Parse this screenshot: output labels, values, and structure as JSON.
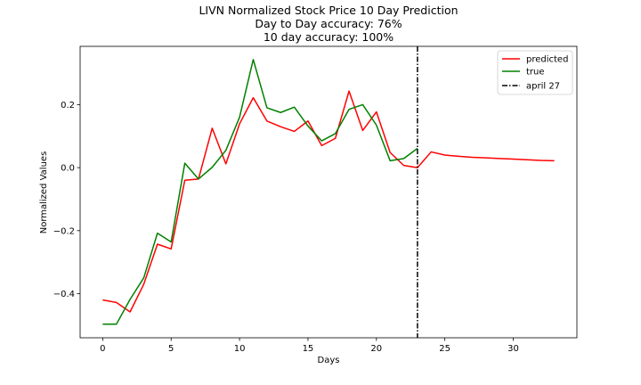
{
  "chart_data": {
    "type": "line",
    "title": "LIVN Normalized Stock Price 10 Day Prediction",
    "subtitle_lines": [
      "Day to Day accuracy: 76%",
      "10 day accuracy: 100%"
    ],
    "xlabel": "Days",
    "ylabel": "Normalized Values",
    "xlim": [
      -1.65,
      34.65
    ],
    "ylim": [
      -0.54,
      0.385
    ],
    "xticks": [
      0,
      5,
      10,
      15,
      20,
      25,
      30
    ],
    "yticks": [
      -0.4,
      -0.2,
      0.0,
      0.2
    ],
    "ytick_labels": [
      "−0.4",
      "−0.2",
      "0.0",
      "0.2"
    ],
    "grid": false,
    "legend_position": "top-right",
    "series": [
      {
        "name": "predicted",
        "color": "#ff0000",
        "x": [
          0,
          1,
          2,
          3,
          4,
          5,
          6,
          7,
          8,
          9,
          10,
          11,
          12,
          13,
          14,
          15,
          16,
          17,
          18,
          19,
          20,
          21,
          22,
          23,
          24,
          25,
          26,
          27,
          28,
          29,
          30,
          31,
          32,
          33
        ],
        "values": [
          -0.42,
          -0.428,
          -0.458,
          -0.37,
          -0.243,
          -0.258,
          -0.04,
          -0.036,
          0.125,
          0.012,
          0.139,
          0.222,
          0.148,
          0.13,
          0.115,
          0.148,
          0.07,
          0.093,
          0.243,
          0.118,
          0.177,
          0.048,
          0.007,
          0.0,
          0.05,
          0.04,
          0.036,
          0.033,
          0.031,
          0.029,
          0.027,
          0.025,
          0.023,
          0.022
        ]
      },
      {
        "name": "true",
        "color": "#008000",
        "x": [
          0,
          1,
          2,
          3,
          4,
          5,
          6,
          7,
          8,
          9,
          10,
          11,
          12,
          13,
          14,
          15,
          16,
          17,
          18,
          19,
          20,
          21,
          22,
          23
        ],
        "values": [
          -0.497,
          -0.497,
          -0.418,
          -0.35,
          -0.208,
          -0.236,
          0.014,
          -0.036,
          0.001,
          0.055,
          0.16,
          0.343,
          0.19,
          0.175,
          0.192,
          0.132,
          0.085,
          0.108,
          0.185,
          0.2,
          0.135,
          0.022,
          0.029,
          0.061
        ]
      }
    ],
    "vline": {
      "name": "april 27",
      "x": 23,
      "color": "#000000",
      "style": "dash-dot"
    }
  }
}
